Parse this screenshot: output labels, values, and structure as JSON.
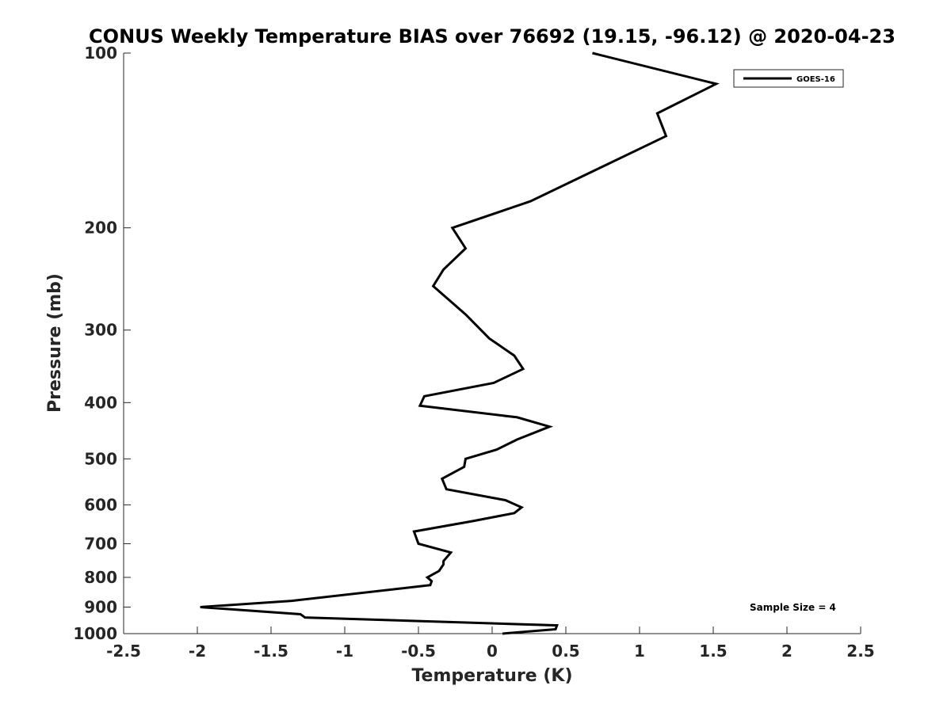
{
  "chart_data": {
    "type": "line",
    "title": "CONUS Weekly Temperature BIAS over 76692 (19.15, -96.12) @ 2020-04-23",
    "xlabel": "Temperature (K)",
    "ylabel": "Pressure (mb)",
    "xlim": [
      -2.5,
      2.5
    ],
    "ylim": [
      1000,
      100
    ],
    "yscale": "log",
    "y_reversed": true,
    "grid": false,
    "legend_position": "top-right",
    "x_ticks": [
      {
        "value": -2.5,
        "label": "-2.5"
      },
      {
        "value": -2,
        "label": "-2"
      },
      {
        "value": -1.5,
        "label": "-1.5"
      },
      {
        "value": -1,
        "label": "-1"
      },
      {
        "value": -0.5,
        "label": "-0.5"
      },
      {
        "value": 0,
        "label": "0"
      },
      {
        "value": 0.5,
        "label": "0.5"
      },
      {
        "value": 1,
        "label": "1"
      },
      {
        "value": 1.5,
        "label": "1.5"
      },
      {
        "value": 2,
        "label": "2"
      },
      {
        "value": 2.5,
        "label": "2.5"
      }
    ],
    "y_ticks": [
      {
        "value": 100,
        "label": "100"
      },
      {
        "value": 200,
        "label": "200"
      },
      {
        "value": 300,
        "label": "300"
      },
      {
        "value": 400,
        "label": "400"
      },
      {
        "value": 500,
        "label": "500"
      },
      {
        "value": 600,
        "label": "600"
      },
      {
        "value": 700,
        "label": "700"
      },
      {
        "value": 800,
        "label": "800"
      },
      {
        "value": 900,
        "label": "900"
      },
      {
        "value": 1000,
        "label": "1000"
      }
    ],
    "series": [
      {
        "name": "GOES-16",
        "color": "#000000",
        "x": [
          0.68,
          1.52,
          1.12,
          1.18,
          0.26,
          -0.27,
          -0.18,
          -0.33,
          -0.4,
          -0.18,
          -0.02,
          0.15,
          0.21,
          0.01,
          -0.46,
          -0.49,
          0.17,
          0.39,
          0.17,
          0.03,
          -0.18,
          -0.19,
          -0.34,
          -0.31,
          0.09,
          0.2,
          0.15,
          -0.13,
          -0.53,
          -0.5,
          -0.28,
          -0.33,
          -0.33,
          -0.36,
          -0.44,
          -0.41,
          -0.42,
          -1.36,
          -1.98,
          -1.3,
          -1.27,
          0.44,
          0.43,
          0.07
        ],
        "y": [
          100,
          113,
          127,
          139,
          180,
          200,
          217,
          236,
          252,
          282,
          310,
          332,
          350,
          370,
          390,
          405,
          424,
          440,
          463,
          482,
          500,
          516,
          541,
          564,
          589,
          606,
          620,
          640,
          667,
          700,
          725,
          750,
          760,
          780,
          800,
          812,
          825,
          878,
          900,
          926,
          938,
          968,
          983,
          1000
        ]
      }
    ],
    "annotations": [
      {
        "text": "Sample Size = 4"
      }
    ]
  }
}
